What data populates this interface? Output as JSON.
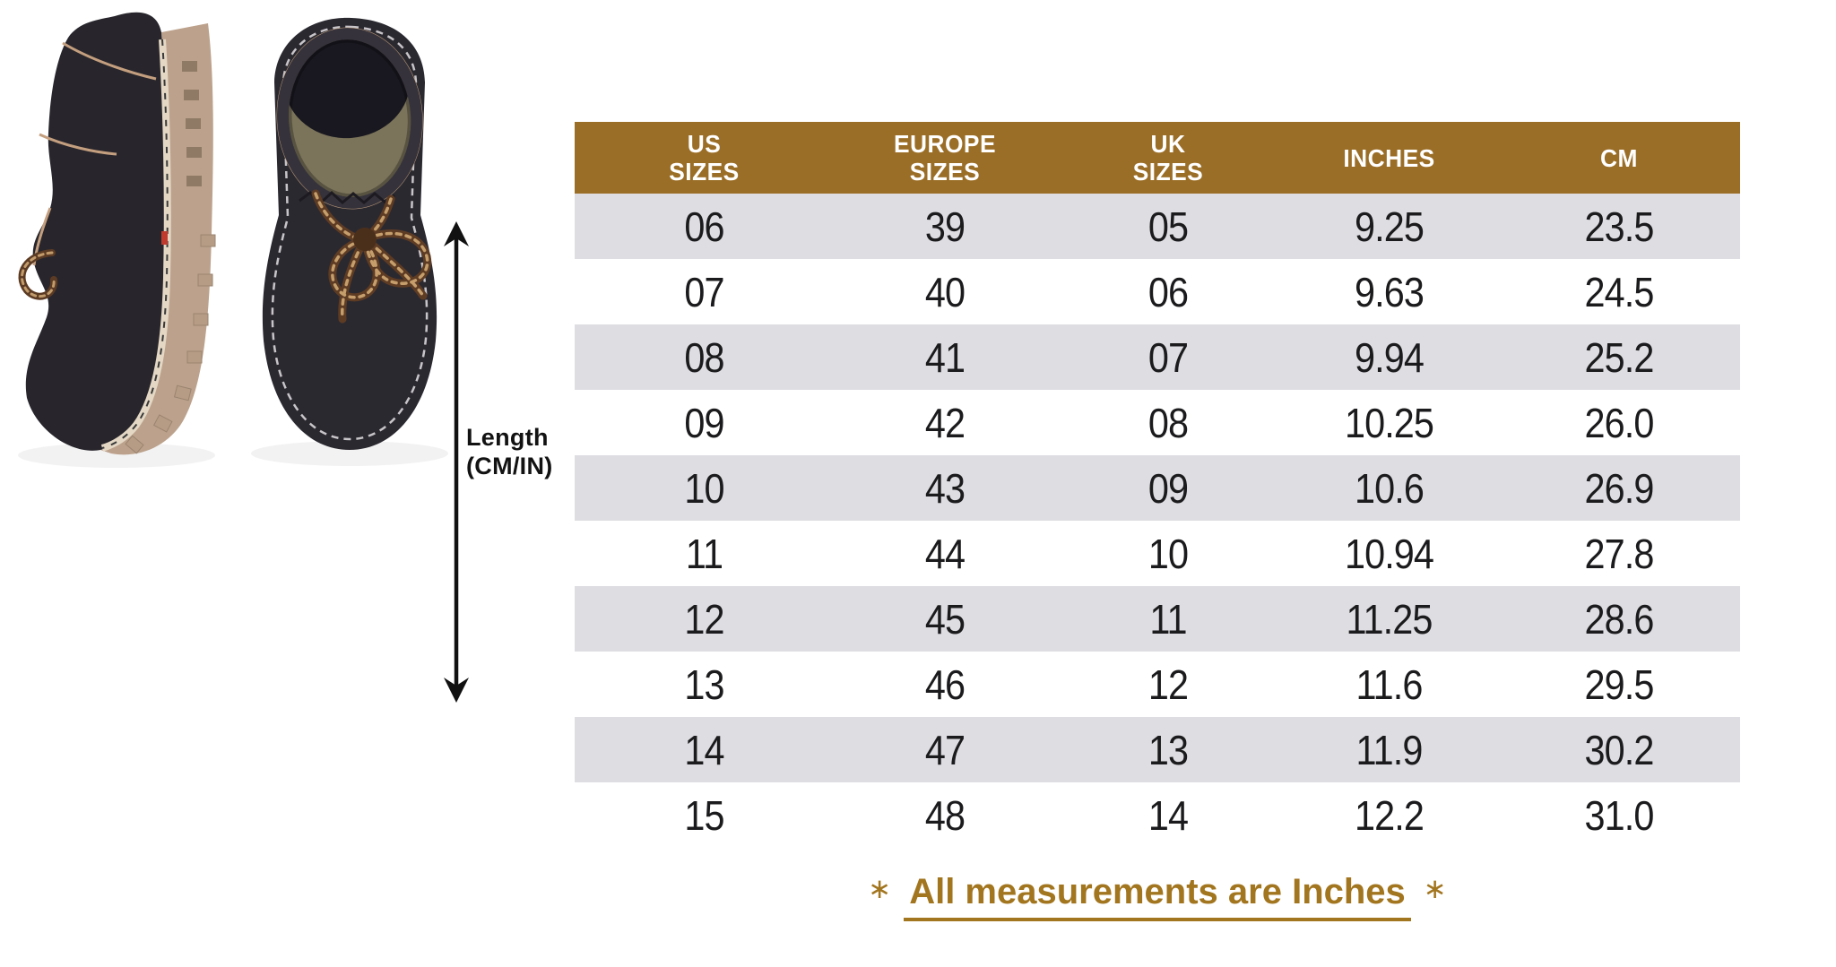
{
  "figure": {
    "length_label": "Length\n(CM/IN)",
    "arrow_direction": "vertical-double"
  },
  "table": {
    "columns": [
      "US\nSIZES",
      "EUROPE\nSIZES",
      "UK\nSIZES",
      "INCHES",
      "CM"
    ],
    "rows": [
      [
        "06",
        "39",
        "05",
        "9.25",
        "23.5"
      ],
      [
        "07",
        "40",
        "06",
        "9.63",
        "24.5"
      ],
      [
        "08",
        "41",
        "07",
        "9.94",
        "25.2"
      ],
      [
        "09",
        "42",
        "08",
        "10.25",
        "26.0"
      ],
      [
        "10",
        "43",
        "09",
        "10.6",
        "26.9"
      ],
      [
        "11",
        "44",
        "10",
        "10.94",
        "27.8"
      ],
      [
        "12",
        "45",
        "11",
        "11.25",
        "28.6"
      ],
      [
        "13",
        "46",
        "12",
        "11.6",
        "29.5"
      ],
      [
        "14",
        "47",
        "13",
        "11.9",
        "30.2"
      ],
      [
        "15",
        "48",
        "14",
        "12.2",
        "31.0"
      ]
    ]
  },
  "note": {
    "asterisk": "∗",
    "text": "All measurements are Inches"
  },
  "colors": {
    "header_bg": "#9B6E27",
    "header_text": "#FFFFFF",
    "row_alt_bg": "#DEDDE2",
    "cell_text": "#1B1B1D",
    "note_color": "#A2751F",
    "arrow_color": "#111111"
  },
  "chart_data": {
    "type": "table",
    "columns": [
      "US SIZES",
      "EUROPE SIZES",
      "UK SIZES",
      "INCHES",
      "CM"
    ],
    "rows": [
      [
        "06",
        "39",
        "05",
        "9.25",
        "23.5"
      ],
      [
        "07",
        "40",
        "06",
        "9.63",
        "24.5"
      ],
      [
        "08",
        "41",
        "07",
        "9.94",
        "25.2"
      ],
      [
        "09",
        "42",
        "08",
        "10.25",
        "26.0"
      ],
      [
        "10",
        "43",
        "09",
        "10.6",
        "26.9"
      ],
      [
        "11",
        "44",
        "10",
        "10.94",
        "27.8"
      ],
      [
        "12",
        "45",
        "11",
        "11.25",
        "28.6"
      ],
      [
        "13",
        "46",
        "12",
        "11.6",
        "29.5"
      ],
      [
        "14",
        "47",
        "13",
        "11.9",
        "30.2"
      ],
      [
        "15",
        "48",
        "14",
        "12.2",
        "31.0"
      ]
    ],
    "note": "All measurements are Inches"
  }
}
